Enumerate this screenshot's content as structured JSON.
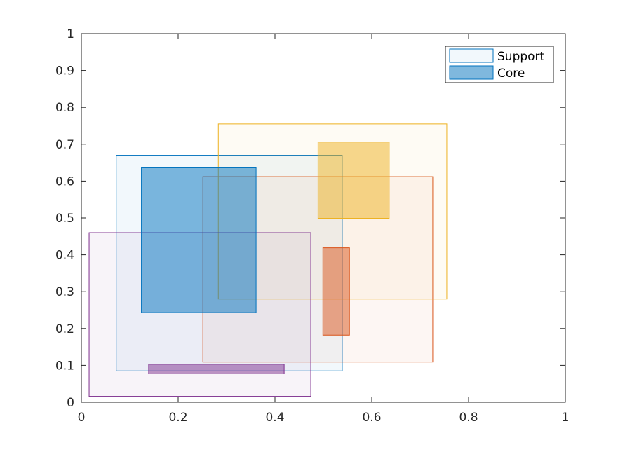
{
  "chart_data": {
    "type": "rectangle",
    "xlim": [
      0,
      1
    ],
    "ylim": [
      0,
      1
    ],
    "x_ticks": [
      "0",
      "0.2",
      "0.4",
      "0.6",
      "0.8",
      "1"
    ],
    "y_ticks": [
      "0",
      "0.1",
      "0.2",
      "0.3",
      "0.4",
      "0.5",
      "0.6",
      "0.7",
      "0.8",
      "0.9",
      "1"
    ],
    "x_tick_values": [
      0,
      0.2,
      0.4,
      0.6,
      0.8,
      1
    ],
    "y_tick_values": [
      0,
      0.1,
      0.2,
      0.3,
      0.4,
      0.5,
      0.6,
      0.7,
      0.8,
      0.9,
      1
    ],
    "legend": {
      "position": "top-right",
      "entries": [
        "Support",
        "Core"
      ]
    },
    "clusters": [
      {
        "color": "#0072BD",
        "support": {
          "x0": 0.072,
          "x1": 0.539,
          "y0": 0.085,
          "y1": 0.67
        },
        "core": {
          "x0": 0.124,
          "x1": 0.361,
          "y0": 0.243,
          "y1": 0.636
        }
      },
      {
        "color": "#D95319",
        "support": {
          "x0": 0.251,
          "x1": 0.726,
          "y0": 0.109,
          "y1": 0.612
        },
        "core": {
          "x0": 0.499,
          "x1": 0.554,
          "y0": 0.182,
          "y1": 0.419
        }
      },
      {
        "color": "#EDB120",
        "support": {
          "x0": 0.283,
          "x1": 0.755,
          "y0": 0.28,
          "y1": 0.755
        },
        "core": {
          "x0": 0.489,
          "x1": 0.636,
          "y0": 0.499,
          "y1": 0.706
        }
      },
      {
        "color": "#7E2F8E",
        "support": {
          "x0": 0.016,
          "x1": 0.474,
          "y0": 0.016,
          "y1": 0.46
        },
        "core": {
          "x0": 0.139,
          "x1": 0.419,
          "y0": 0.077,
          "y1": 0.103
        }
      }
    ]
  }
}
